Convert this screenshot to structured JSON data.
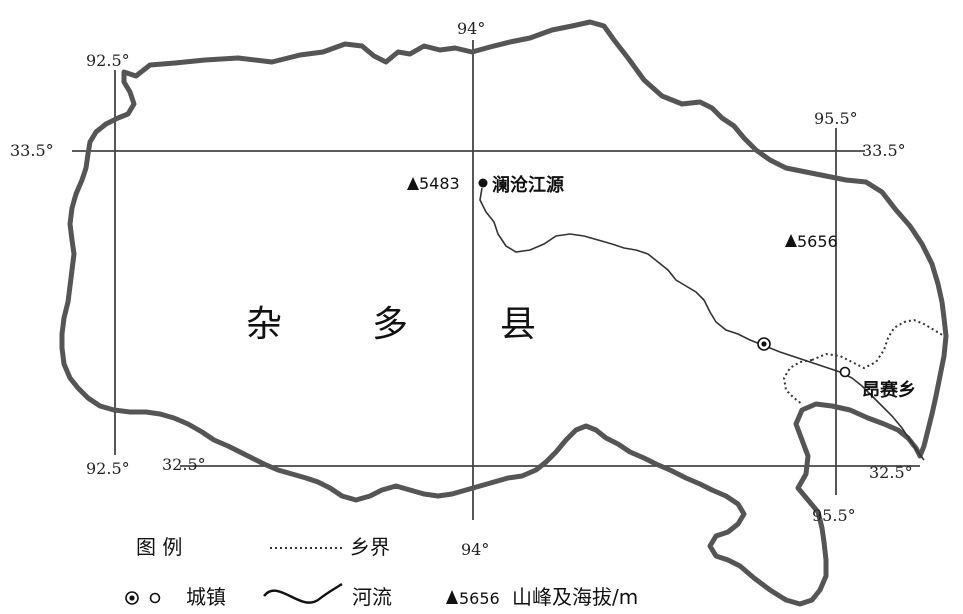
{
  "map": {
    "county_name": [
      "杂",
      "多",
      "县"
    ],
    "source_label": "澜沧江源",
    "township_label": "昂赛乡",
    "peaks": [
      {
        "name": "peak-5483",
        "elevation": "5483"
      },
      {
        "name": "peak-5656",
        "elevation": "5656"
      }
    ]
  },
  "graticule": {
    "lon_left_top": "92.5°",
    "lon_left_bottom": "92.5°",
    "lon_mid_top": "94°",
    "lon_mid_bottom": "94°",
    "lon_right_top": "95.5°",
    "lon_right_bottom": "95.5°",
    "lat_top_left": "33.5°",
    "lat_top_right": "33.5°",
    "lat_bottom_left": "32.5°",
    "lat_bottom_right": "32.5°"
  },
  "legend": {
    "title": "图 例",
    "boundary_label": "乡界",
    "town_label": "城镇",
    "river_label": "河流",
    "peak_sample": "5656",
    "peak_label": "山峰及海拔/m"
  },
  "colors": {
    "border": "#555555",
    "river": "#333333",
    "grid": "#444444",
    "text": "#111111"
  }
}
